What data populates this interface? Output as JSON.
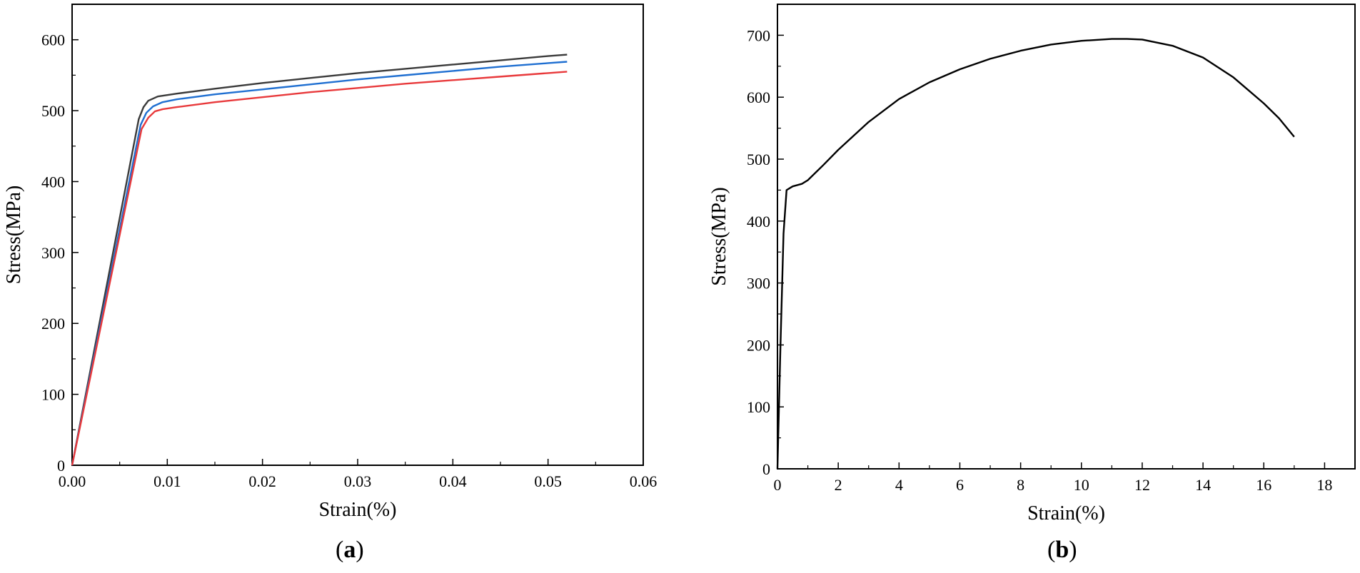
{
  "chart_data": [
    {
      "type": "line",
      "panel": "(a)",
      "panel_letter": "a",
      "xlabel": "Strain(%)",
      "ylabel": "Stress(MPa)",
      "xlim": [
        0,
        0.06
      ],
      "ylim": [
        0,
        650
      ],
      "xticks": [
        0.0,
        0.01,
        0.02,
        0.03,
        0.04,
        0.05,
        0.06
      ],
      "xtick_labels": [
        "0.00",
        "0.01",
        "0.02",
        "0.03",
        "0.04",
        "0.05",
        "0.06"
      ],
      "yticks": [
        0,
        100,
        200,
        300,
        400,
        500,
        600
      ],
      "ytick_labels": [
        "0",
        "100",
        "200",
        "300",
        "400",
        "500",
        "600"
      ],
      "grid": false,
      "legend": "none",
      "series": [
        {
          "color": "#3a3a3a",
          "x": [
            0,
            0.007,
            0.0075,
            0.008,
            0.009,
            0.011,
            0.015,
            0.02,
            0.025,
            0.03,
            0.035,
            0.04,
            0.045,
            0.05,
            0.052
          ],
          "y": [
            0,
            488,
            505,
            514,
            520,
            524,
            531,
            539,
            546,
            553,
            559,
            565,
            571,
            577,
            579
          ]
        },
        {
          "color": "#1f6fd1",
          "x": [
            0,
            0.0072,
            0.0078,
            0.0085,
            0.0095,
            0.011,
            0.015,
            0.02,
            0.025,
            0.03,
            0.035,
            0.04,
            0.045,
            0.05,
            0.052
          ],
          "y": [
            0,
            480,
            497,
            506,
            512,
            516,
            523,
            530,
            537,
            544,
            550,
            556,
            562,
            567,
            569
          ]
        },
        {
          "color": "#e8393b",
          "x": [
            0,
            0.0073,
            0.008,
            0.0087,
            0.0095,
            0.011,
            0.015,
            0.02,
            0.025,
            0.03,
            0.035,
            0.04,
            0.045,
            0.05,
            0.052
          ],
          "y": [
            0,
            474,
            490,
            499,
            502,
            505,
            512,
            519,
            526,
            532,
            538,
            543,
            548,
            553,
            555
          ]
        }
      ]
    },
    {
      "type": "line",
      "panel": "(b)",
      "panel_letter": "b",
      "xlabel": "Strain(%)",
      "ylabel": "Stress(MPa)",
      "xlim": [
        0,
        19
      ],
      "ylim": [
        0,
        750
      ],
      "xticks": [
        0,
        2,
        4,
        6,
        8,
        10,
        12,
        14,
        16,
        18
      ],
      "xtick_labels": [
        "0",
        "2",
        "4",
        "6",
        "8",
        "10",
        "12",
        "14",
        "16",
        "18"
      ],
      "yticks": [
        0,
        100,
        200,
        300,
        400,
        500,
        600,
        700
      ],
      "ytick_labels": [
        "0",
        "100",
        "200",
        "300",
        "400",
        "500",
        "600",
        "700"
      ],
      "grid": false,
      "legend": "none",
      "series": [
        {
          "color": "#000000",
          "x": [
            0,
            0.1,
            0.2,
            0.3,
            0.5,
            0.8,
            1.0,
            1.5,
            2.0,
            3.0,
            4.0,
            5.0,
            6.0,
            7.0,
            8.0,
            9.0,
            10.0,
            11.0,
            11.5,
            12.0,
            13.0,
            14.0,
            15.0,
            16.0,
            16.5,
            17.0
          ],
          "y": [
            0,
            200,
            380,
            450,
            456,
            460,
            466,
            490,
            515,
            560,
            597,
            624,
            645,
            662,
            675,
            685,
            691,
            694,
            694,
            693,
            683,
            664,
            632,
            590,
            566,
            536
          ]
        }
      ]
    }
  ]
}
